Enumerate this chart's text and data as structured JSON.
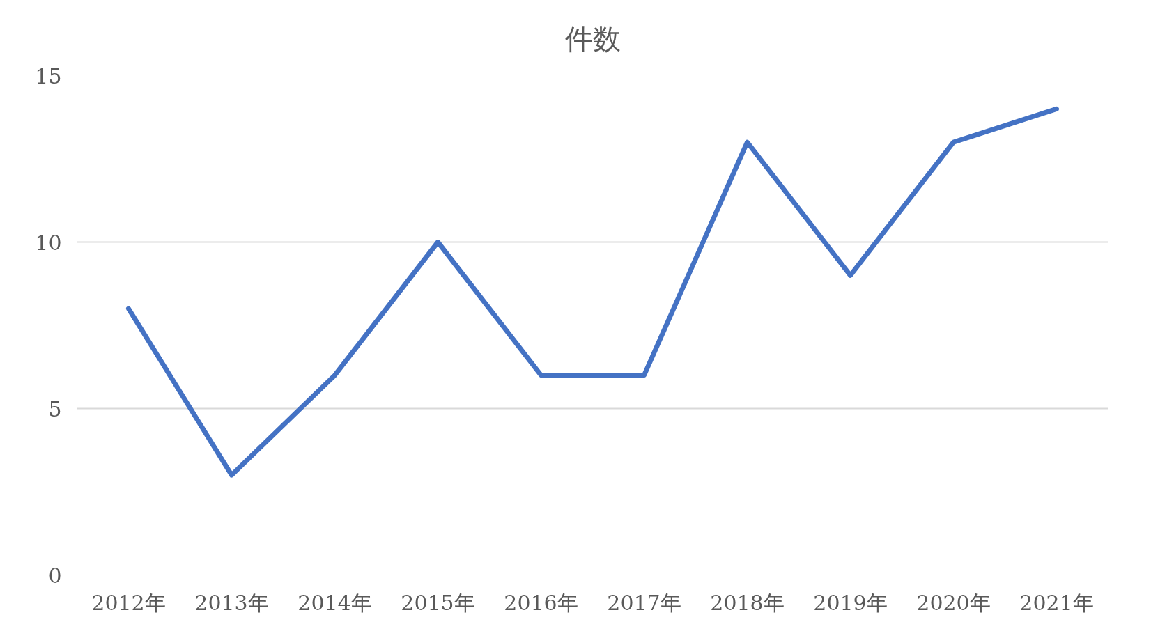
{
  "chart_data": {
    "type": "line",
    "title": "件数",
    "categories": [
      "2012年",
      "2013年",
      "2014年",
      "2015年",
      "2016年",
      "2017年",
      "2018年",
      "2019年",
      "2020年",
      "2021年"
    ],
    "series": [
      {
        "color": "#4472c4",
        "values": [
          8,
          3,
          6,
          10,
          6,
          6,
          13,
          9,
          13,
          14
        ]
      }
    ],
    "ylim": [
      0,
      15
    ],
    "yticks": [
      0,
      5,
      10,
      15
    ],
    "grid": "y",
    "marker": "none",
    "line_style": "solid"
  }
}
